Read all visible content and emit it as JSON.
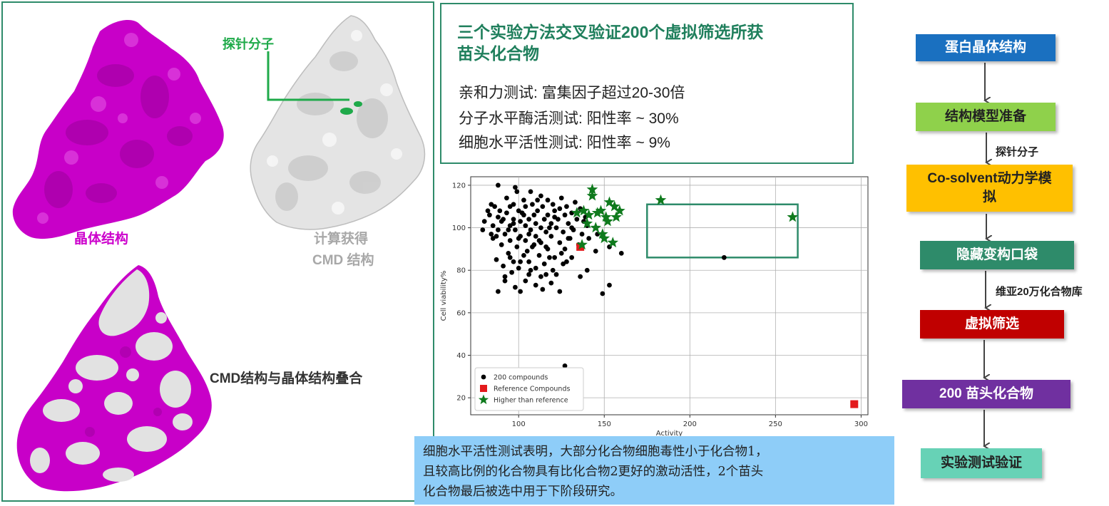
{
  "left_panel": {
    "crystal_label": "晶体结构",
    "cmd_label_line1": "计算获得",
    "cmd_label_line2": "CMD 结构",
    "probe_label": "探针分子",
    "overlay_label": "CMD结构与晶体结构叠合"
  },
  "summary_panel": {
    "title_line1": "三个实验方法交叉验证200个虚拟筛选所获",
    "title_line2": "苗头化合物",
    "lines": [
      "亲和力测试: 富集因子超过20-30倍",
      "分子水平酶活测试: 阳性率 ~ 30%",
      "细胞水平活性测试: 阳性率 ~ 9%"
    ]
  },
  "colors": {
    "frame": "#2e8b6a",
    "crystal": "#cc00cc",
    "cmd": "#d8d8d8",
    "probe": "#1faa4a"
  },
  "chart_data": {
    "type": "scatter",
    "xlabel": "Activity",
    "ylabel": "Cell viability%",
    "xlim": [
      72,
      304
    ],
    "ylim": [
      12,
      124
    ],
    "xticks": [
      100,
      150,
      200,
      250,
      300
    ],
    "yticks": [
      20,
      40,
      60,
      80,
      100,
      120
    ],
    "grid": true,
    "legend_position": "bottom-left",
    "highlight_box": {
      "x": [
        175,
        263
      ],
      "y": [
        86,
        111
      ]
    },
    "series": [
      {
        "name": "200 compounds",
        "marker": "circle",
        "color": "#000000",
        "points": [
          [
            88,
            120
          ],
          [
            98,
            119
          ],
          [
            107,
            117
          ],
          [
            113,
            115
          ],
          [
            125,
            114
          ],
          [
            93,
            114
          ],
          [
            103,
            113
          ],
          [
            117,
            113
          ],
          [
            133,
            112
          ],
          [
            84,
            111
          ],
          [
            97,
            111
          ],
          [
            108,
            111
          ],
          [
            120,
            111
          ],
          [
            128,
            110
          ],
          [
            86,
            110
          ],
          [
            95,
            110
          ],
          [
            104,
            110
          ],
          [
            114,
            110
          ],
          [
            124,
            109
          ],
          [
            136,
            109
          ],
          [
            89,
            108
          ],
          [
            100,
            108
          ],
          [
            111,
            108
          ],
          [
            121,
            108
          ],
          [
            131,
            107
          ],
          [
            83,
            106
          ],
          [
            93,
            107
          ],
          [
            103,
            106
          ],
          [
            109,
            106
          ],
          [
            117,
            106
          ],
          [
            127,
            106
          ],
          [
            139,
            105
          ],
          [
            88,
            105
          ],
          [
            97,
            104
          ],
          [
            106,
            104
          ],
          [
            115,
            104
          ],
          [
            123,
            104
          ],
          [
            134,
            104
          ],
          [
            80,
            103
          ],
          [
            90,
            103
          ],
          [
            101,
            103
          ],
          [
            110,
            102
          ],
          [
            119,
            102
          ],
          [
            129,
            102
          ],
          [
            85,
            101
          ],
          [
            95,
            101
          ],
          [
            104,
            101
          ],
          [
            113,
            100
          ],
          [
            122,
            100
          ],
          [
            131,
            100
          ],
          [
            79,
            99
          ],
          [
            88,
            99
          ],
          [
            98,
            99
          ],
          [
            107,
            99
          ],
          [
            116,
            98
          ],
          [
            126,
            98
          ],
          [
            137,
            97
          ],
          [
            92,
            97
          ],
          [
            101,
            96
          ],
          [
            110,
            96
          ],
          [
            119,
            96
          ],
          [
            130,
            95
          ],
          [
            141,
            95
          ],
          [
            85,
            95
          ],
          [
            95,
            94
          ],
          [
            104,
            94
          ],
          [
            113,
            93
          ],
          [
            124,
            93
          ],
          [
            135,
            92
          ],
          [
            90,
            92
          ],
          [
            99,
            91
          ],
          [
            108,
            91
          ],
          [
            117,
            90
          ],
          [
            127,
            90
          ],
          [
            145,
            89
          ],
          [
            160,
            88
          ],
          [
            94,
            88
          ],
          [
            103,
            87
          ],
          [
            112,
            87
          ],
          [
            121,
            86
          ],
          [
            131,
            86
          ],
          [
            87,
            85
          ],
          [
            97,
            84
          ],
          [
            106,
            84
          ],
          [
            115,
            83
          ],
          [
            126,
            83
          ],
          [
            91,
            82
          ],
          [
            100,
            81
          ],
          [
            110,
            81
          ],
          [
            120,
            80
          ],
          [
            140,
            80
          ],
          [
            96,
            79
          ],
          [
            106,
            78
          ],
          [
            116,
            78
          ],
          [
            136,
            77
          ],
          [
            92,
            75
          ],
          [
            104,
            75
          ],
          [
            119,
            74
          ],
          [
            110,
            73
          ],
          [
            98,
            72
          ],
          [
            114,
            71
          ],
          [
            153,
            73
          ],
          [
            101,
            70
          ],
          [
            149,
            69
          ],
          [
            88,
            70
          ],
          [
            124,
            70
          ],
          [
            127,
            35
          ],
          [
            220,
            86
          ],
          [
            153,
            91
          ],
          [
            146,
            97
          ],
          [
            140,
            101
          ],
          [
            97,
            102
          ],
          [
            102,
            107
          ],
          [
            106,
            97
          ],
          [
            112,
            94
          ],
          [
            118,
            100
          ],
          [
            87,
            96
          ],
          [
            94,
            99
          ],
          [
            121,
            105
          ],
          [
            111,
            113
          ],
          [
            99,
            117
          ],
          [
            116,
            91
          ],
          [
            105,
            89
          ],
          [
            95,
            86
          ],
          [
            125,
            88
          ],
          [
            129,
            95
          ],
          [
            132,
            99
          ],
          [
            138,
            103
          ],
          [
            82,
            108
          ],
          [
            91,
            104
          ],
          [
            100,
            95
          ],
          [
            109,
            92
          ],
          [
            118,
            86
          ],
          [
            107,
            80
          ],
          [
            92,
            77
          ],
          [
            113,
            77
          ],
          [
            101,
            84
          ],
          [
            84,
            97
          ],
          [
            128,
            84
          ],
          [
            122,
            78
          ]
        ]
      },
      {
        "name": "Reference Compounds",
        "marker": "square",
        "color": "#e31a1c",
        "points": [
          [
            136,
            91
          ],
          [
            296,
            17
          ]
        ]
      },
      {
        "name": "Higher than reference",
        "marker": "star",
        "color": "#0f7a1d",
        "points": [
          [
            143,
            118
          ],
          [
            143,
            115
          ],
          [
            138,
            108
          ],
          [
            141,
            106
          ],
          [
            148,
            108
          ],
          [
            153,
            112
          ],
          [
            156,
            110
          ],
          [
            159,
            108
          ],
          [
            151,
            105
          ],
          [
            157,
            105
          ],
          [
            140,
            102
          ],
          [
            145,
            100
          ],
          [
            149,
            97
          ],
          [
            150,
            95
          ],
          [
            155,
            93
          ],
          [
            137,
            92
          ],
          [
            146,
            107
          ],
          [
            152,
            103
          ],
          [
            134,
            107
          ],
          [
            183,
            113
          ],
          [
            260,
            105
          ]
        ]
      }
    ]
  },
  "conclusion": {
    "line1": "细胞水平活性测试表明，大部分化合物细胞毒性小于化合物1，",
    "line2": "且较高比例的化合物具有比化合物2更好的激动活性，2个苗头",
    "line3": "化合物最后被选中用于下阶段研究。"
  },
  "flow": {
    "step1": "蛋白晶体结构",
    "step2": "结构模型准备",
    "label1": "探针分子",
    "step3_line1": "Co-solvent动力学模",
    "step3_line2": "拟",
    "step4": "隐藏变构口袋",
    "label2": "维亚20万化合物库",
    "step5": "虚拟筛选",
    "step6": "200 苗头化合物",
    "step7": "实验测试验证"
  }
}
